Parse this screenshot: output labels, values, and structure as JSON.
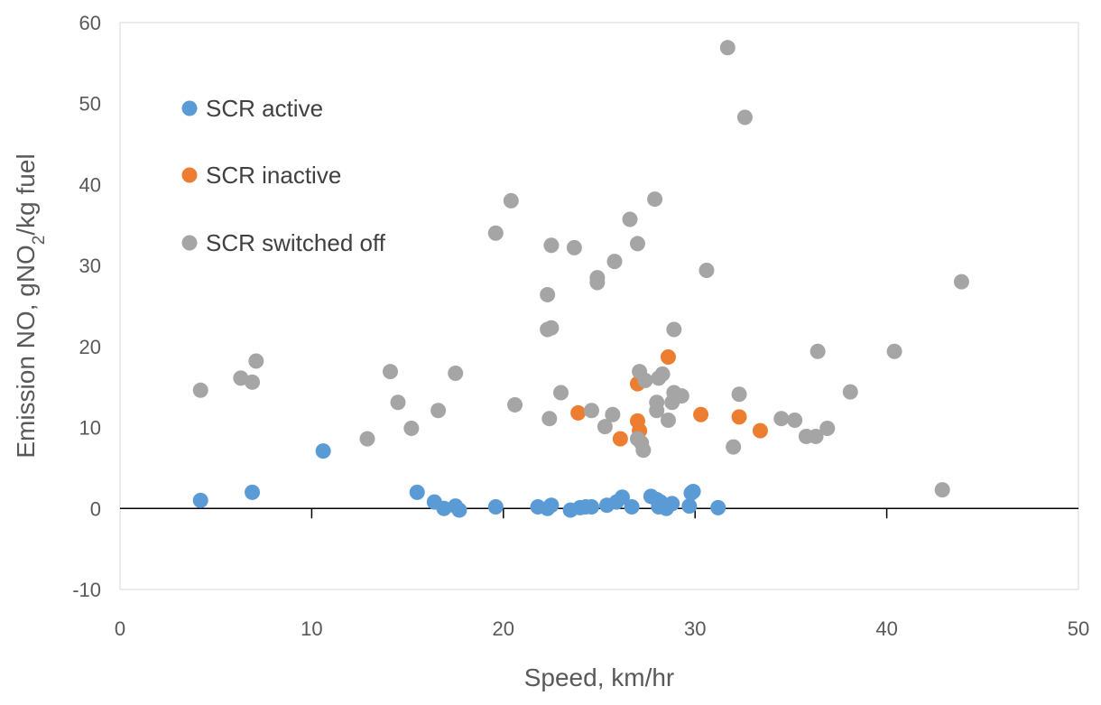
{
  "chart_data": {
    "type": "scatter",
    "title": "",
    "xlabel": "Speed, km/hr",
    "ylabel": {
      "parts": [
        "Emission NO, gNO",
        "2",
        "/kg fuel"
      ],
      "text": "Emission NO, gNO2/kg fuel"
    },
    "xlim": [
      0,
      50
    ],
    "ylim": [
      -10,
      60
    ],
    "xticks": [
      0,
      10,
      20,
      30,
      40,
      50
    ],
    "yticks": [
      -10,
      0,
      10,
      20,
      30,
      40,
      50,
      60
    ],
    "grid": false,
    "legend_position": "top-left",
    "series": [
      {
        "name": "SCR active",
        "color": "#5B9BD5",
        "points": [
          [
            4.2,
            1.0
          ],
          [
            6.9,
            2.0
          ],
          [
            10.6,
            7.1
          ],
          [
            15.5,
            2.0
          ],
          [
            16.4,
            0.8
          ],
          [
            16.9,
            0.0
          ],
          [
            17.5,
            0.3
          ],
          [
            17.7,
            -0.2
          ],
          [
            19.6,
            0.2
          ],
          [
            21.8,
            0.2
          ],
          [
            22.3,
            0.0
          ],
          [
            22.5,
            0.4
          ],
          [
            23.5,
            -0.2
          ],
          [
            24.0,
            0.1
          ],
          [
            24.3,
            0.2
          ],
          [
            24.6,
            0.2
          ],
          [
            25.4,
            0.4
          ],
          [
            25.9,
            0.8
          ],
          [
            26.2,
            1.4
          ],
          [
            26.7,
            0.2
          ],
          [
            27.7,
            1.5
          ],
          [
            28.0,
            1.1
          ],
          [
            28.1,
            0.2
          ],
          [
            28.2,
            0.8
          ],
          [
            28.5,
            0.0
          ],
          [
            28.8,
            0.6
          ],
          [
            29.7,
            0.3
          ],
          [
            29.8,
            1.9
          ],
          [
            29.9,
            2.1
          ],
          [
            31.2,
            0.1
          ]
        ]
      },
      {
        "name": "SCR inactive",
        "color": "#ED7D31",
        "points": [
          [
            23.9,
            11.8
          ],
          [
            26.1,
            8.6
          ],
          [
            27.0,
            15.4
          ],
          [
            27.0,
            10.8
          ],
          [
            27.1,
            9.6
          ],
          [
            28.6,
            18.7
          ],
          [
            30.3,
            11.6
          ],
          [
            32.3,
            11.3
          ],
          [
            33.4,
            9.6
          ]
        ]
      },
      {
        "name": "SCR switched off",
        "color": "#A5A5A5",
        "points": [
          [
            4.2,
            14.6
          ],
          [
            6.3,
            16.1
          ],
          [
            6.9,
            15.6
          ],
          [
            7.1,
            18.2
          ],
          [
            12.9,
            8.6
          ],
          [
            14.1,
            16.9
          ],
          [
            14.5,
            13.1
          ],
          [
            15.2,
            9.9
          ],
          [
            16.6,
            12.1
          ],
          [
            17.5,
            16.7
          ],
          [
            19.6,
            34.0
          ],
          [
            20.4,
            38.0
          ],
          [
            20.6,
            12.8
          ],
          [
            22.3,
            22.1
          ],
          [
            22.3,
            26.4
          ],
          [
            22.4,
            11.1
          ],
          [
            22.5,
            22.3
          ],
          [
            22.5,
            32.5
          ],
          [
            23.0,
            14.3
          ],
          [
            23.7,
            32.2
          ],
          [
            24.6,
            12.1
          ],
          [
            24.9,
            28.5
          ],
          [
            24.9,
            27.9
          ],
          [
            25.3,
            10.1
          ],
          [
            25.7,
            11.6
          ],
          [
            25.8,
            30.5
          ],
          [
            26.6,
            35.7
          ],
          [
            27.0,
            32.7
          ],
          [
            27.1,
            16.9
          ],
          [
            27.0,
            8.6
          ],
          [
            27.2,
            8.1
          ],
          [
            27.3,
            7.2
          ],
          [
            27.4,
            15.8
          ],
          [
            27.9,
            38.2
          ],
          [
            28.0,
            13.1
          ],
          [
            28.0,
            12.1
          ],
          [
            28.1,
            16.1
          ],
          [
            28.3,
            16.6
          ],
          [
            28.6,
            10.9
          ],
          [
            28.8,
            13.1
          ],
          [
            28.9,
            14.3
          ],
          [
            28.9,
            22.1
          ],
          [
            29.3,
            13.9
          ],
          [
            30.6,
            29.4
          ],
          [
            31.7,
            56.9
          ],
          [
            32.0,
            7.6
          ],
          [
            32.3,
            14.1
          ],
          [
            32.6,
            48.3
          ],
          [
            34.5,
            11.1
          ],
          [
            35.2,
            10.9
          ],
          [
            35.8,
            8.9
          ],
          [
            36.3,
            8.9
          ],
          [
            36.4,
            19.4
          ],
          [
            36.9,
            9.9
          ],
          [
            38.1,
            14.4
          ],
          [
            40.4,
            19.4
          ],
          [
            42.9,
            2.3
          ],
          [
            43.9,
            28.0
          ]
        ]
      }
    ]
  }
}
